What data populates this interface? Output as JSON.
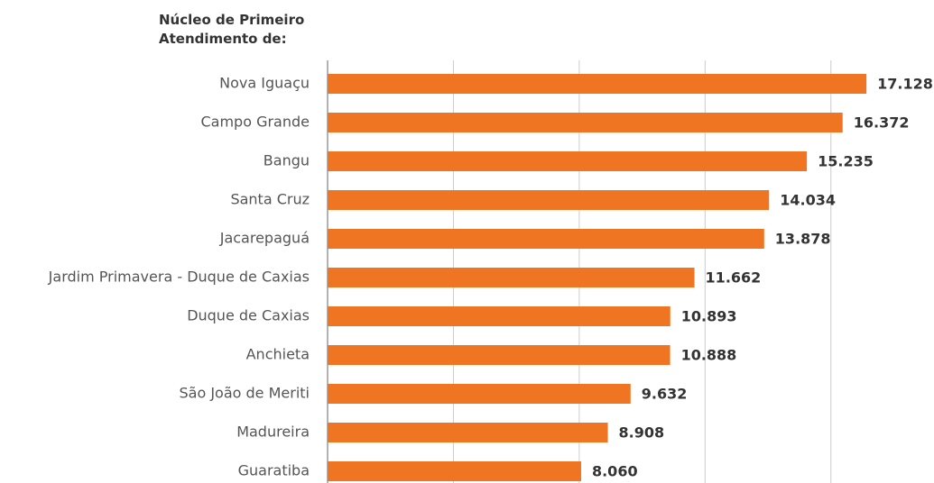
{
  "chart_data": {
    "type": "barh",
    "title": "Núcleo de Primeiro Atendimento de:",
    "categories": [
      "Nova Iguaçu",
      "Campo Grande",
      "Bangu",
      "Santa Cruz",
      "Jacarepaguá",
      "Jardim Primavera - Duque de Caxias",
      "Duque de Caxias",
      "Anchieta",
      "São João de Meriti",
      "Madureira",
      "Guaratiba"
    ],
    "values": [
      17128,
      16372,
      15235,
      14034,
      13878,
      11662,
      10893,
      10888,
      9632,
      8908,
      8060
    ],
    "value_labels": [
      "17.128",
      "16.372",
      "15.235",
      "14.034",
      "13.878",
      "11.662",
      "10.893",
      "10.888",
      "9.632",
      "8.908",
      "8.060"
    ],
    "color": "#f07523",
    "xlim": [
      0,
      18000
    ],
    "xticks": [
      0,
      4000,
      8000,
      12000,
      16000
    ],
    "grid": true
  }
}
